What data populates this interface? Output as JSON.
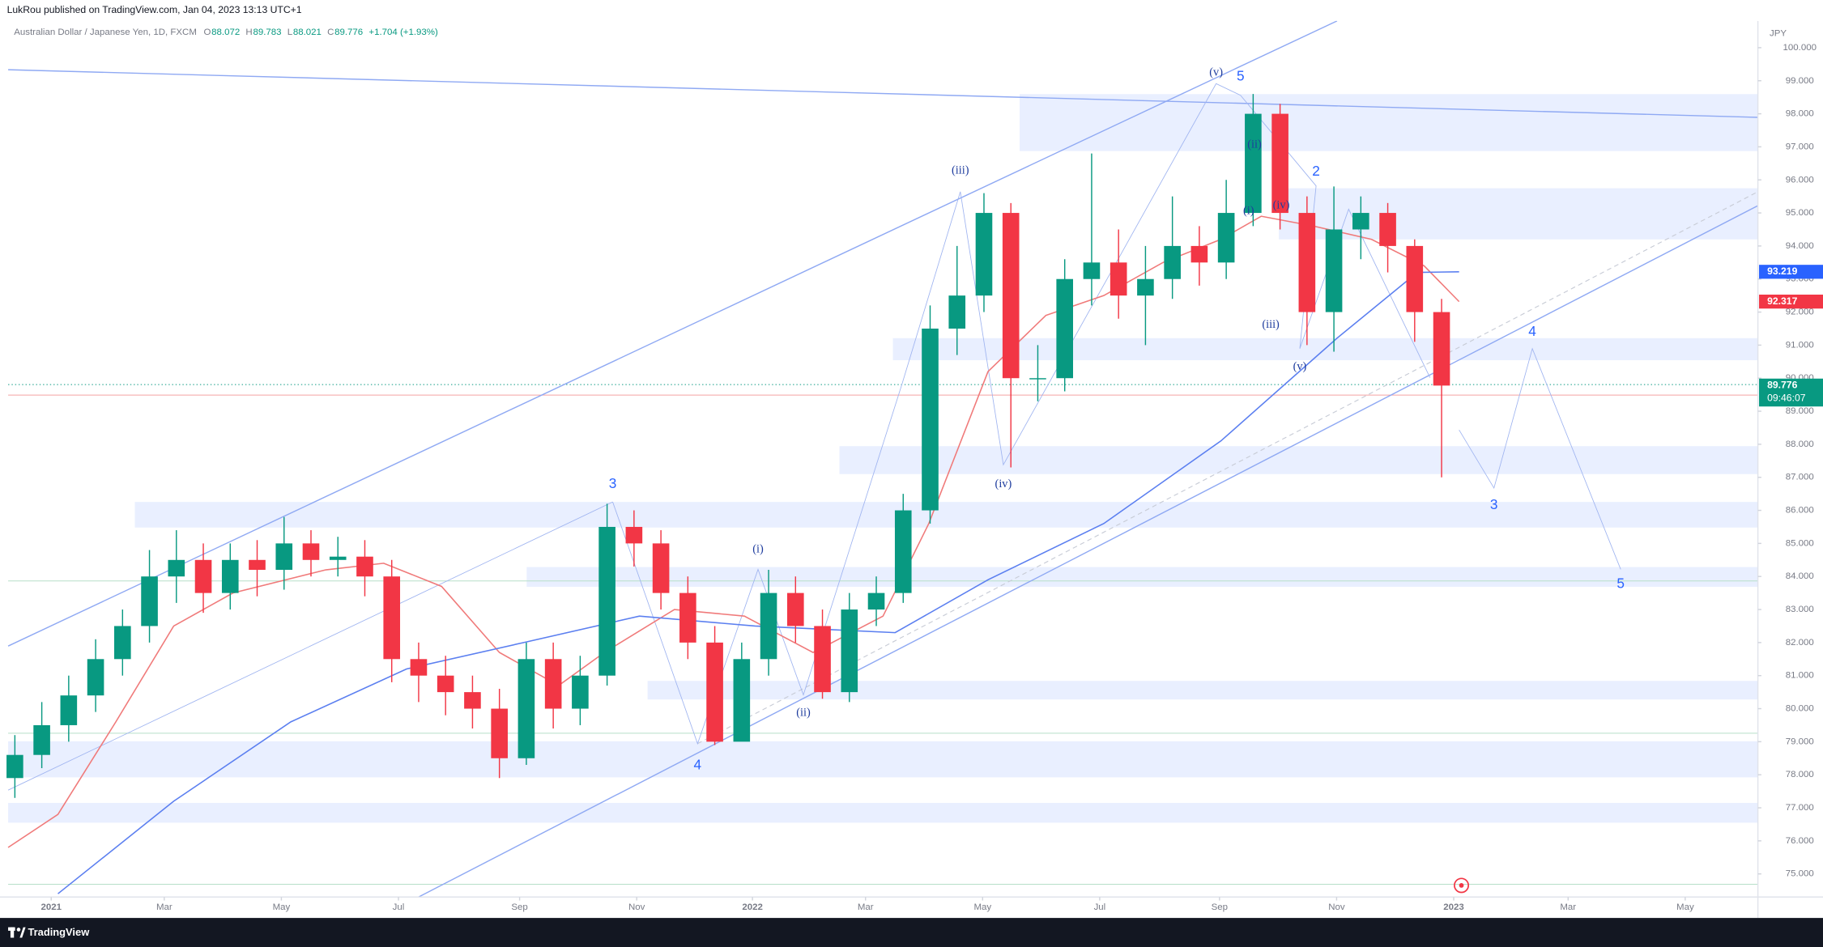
{
  "chart_data": {
    "type": "candlestick",
    "publisher": "LukRou published on TradingView.com, Jan 04, 2023 13:13 UTC+1",
    "title": "Australian Dollar / Japanese Yen, 1D, FXCM",
    "ohlc_legend": [
      {
        "key": "O",
        "value": "88.072"
      },
      {
        "key": "H",
        "value": "89.783"
      },
      {
        "key": "L",
        "value": "88.021"
      },
      {
        "key": "C",
        "value": "89.776"
      }
    ],
    "change": "+1.704 (+1.93%)",
    "y_unit": "JPY",
    "up_color": "#089981",
    "down_color": "#f23645",
    "x": [
      0.5,
      2.5,
      4.5,
      6.5,
      8.5,
      10.5,
      12.5,
      14.5,
      16.5,
      18.5,
      20.5,
      22.5,
      24.5,
      26.5,
      28.5,
      30.5,
      32.5,
      34.5,
      36.5,
      38.5,
      40.5,
      42.5,
      44.5,
      46.5,
      48.5,
      50.5,
      52.5,
      54.5,
      56.5,
      58.5,
      60.5,
      62.5,
      64.5,
      66.5,
      68.5,
      70.5,
      72.5,
      74.5,
      76.5,
      78.5,
      80.5,
      82.5,
      84.5,
      86.5,
      88.5,
      90.5,
      92.5,
      94.5,
      96.5,
      98.5,
      100.5,
      102.5,
      104.5,
      106.5
    ],
    "open": [
      77.9,
      78.6,
      79.5,
      80.4,
      81.5,
      82.5,
      84.0,
      84.5,
      83.5,
      84.5,
      84.2,
      85.0,
      84.5,
      84.6,
      84.0,
      81.5,
      81.0,
      80.5,
      80.0,
      78.5,
      81.5,
      80.0,
      81.0,
      85.5,
      85.0,
      83.5,
      82.0,
      79.0,
      81.5,
      83.5,
      82.5,
      80.5,
      83.0,
      83.5,
      86.0,
      91.5,
      92.5,
      95.0,
      90.0,
      90.0,
      93.0,
      93.5,
      92.5,
      93.0,
      94.0,
      93.5,
      95.0,
      98.0,
      95.0,
      92.0,
      94.5,
      95.0,
      94.0,
      92.0
    ],
    "high": [
      79.2,
      80.2,
      81.0,
      82.1,
      83.0,
      84.8,
      85.4,
      85.0,
      85.0,
      85.1,
      85.8,
      85.4,
      85.2,
      85.1,
      84.5,
      82.0,
      81.6,
      81.0,
      80.6,
      82.0,
      82.0,
      81.6,
      86.2,
      86.0,
      85.4,
      84.0,
      82.5,
      82.0,
      84.2,
      84.0,
      83.0,
      83.5,
      84.0,
      86.5,
      92.2,
      94.0,
      95.6,
      95.3,
      91.0,
      93.6,
      96.8,
      94.5,
      94.0,
      95.5,
      94.6,
      96.0,
      98.6,
      98.3,
      95.5,
      95.8,
      95.5,
      95.3,
      94.2,
      92.4
    ],
    "low": [
      77.3,
      78.2,
      79.0,
      79.9,
      81.0,
      82.0,
      83.2,
      82.9,
      83.0,
      83.4,
      83.6,
      84.0,
      84.0,
      83.4,
      80.8,
      80.2,
      79.8,
      79.4,
      77.9,
      78.3,
      79.4,
      79.5,
      80.7,
      84.3,
      83.0,
      81.5,
      78.9,
      79.2,
      81.0,
      82.0,
      80.3,
      80.2,
      82.5,
      83.2,
      85.6,
      90.7,
      92.0,
      87.3,
      89.3,
      89.6,
      92.2,
      91.8,
      91.0,
      92.4,
      92.8,
      93.0,
      94.6,
      94.5,
      91.0,
      90.8,
      93.6,
      93.2,
      91.1,
      87.0
    ],
    "close": [
      78.6,
      79.5,
      80.4,
      81.5,
      82.5,
      84.0,
      84.5,
      83.5,
      84.5,
      84.2,
      85.0,
      84.5,
      84.6,
      84.0,
      81.5,
      81.0,
      80.5,
      80.0,
      78.5,
      81.5,
      80.0,
      81.0,
      85.5,
      85.0,
      83.5,
      82.0,
      79.0,
      81.5,
      83.5,
      82.5,
      80.5,
      83.0,
      83.5,
      86.0,
      91.5,
      92.5,
      95.0,
      90.0,
      90.0,
      93.0,
      93.5,
      92.5,
      93.0,
      94.0,
      93.5,
      95.0,
      98.0,
      95.0,
      92.0,
      94.5,
      95.0,
      94.0,
      92.0,
      89.776
    ],
    "overlays": [
      {
        "color": "#f07a7a",
        "x": [
          0,
          3.7,
          8.0,
          12.3,
          16.7,
          23.6,
          27.9,
          32.2,
          36.5,
          40.9,
          44.3,
          49.5,
          54.7,
          59.8,
          65.0,
          68.4,
          72.8,
          77.1,
          81.4,
          85.8,
          90.1,
          93.1,
          97.0,
          101.3,
          105.2,
          107.8
        ],
        "values": [
          75.8,
          76.8,
          79.6,
          82.5,
          83.5,
          84.2,
          84.4,
          83.7,
          81.7,
          80.7,
          81.7,
          83.0,
          82.8,
          81.7,
          82.8,
          85.6,
          90.2,
          91.9,
          92.5,
          93.5,
          94.2,
          94.9,
          94.6,
          94.2,
          93.4,
          92.317
        ]
      },
      {
        "color": "#5b7ff0",
        "x": [
          3.7,
          12.3,
          21.0,
          29.6,
          38.3,
          46.9,
          55.5,
          65.9,
          72.8,
          81.4,
          90.1,
          98.7,
          104.7,
          107.8
        ],
        "values": [
          74.4,
          77.2,
          79.6,
          81.2,
          82.0,
          82.8,
          82.5,
          82.3,
          83.9,
          85.6,
          88.1,
          91.2,
          93.2,
          93.219
        ]
      }
    ],
    "price_markers": [
      {
        "value": 93.219,
        "color": "#2962ff"
      },
      {
        "value": 92.317,
        "color": "#f23645"
      },
      {
        "value": 89.776,
        "color": "#089981"
      }
    ],
    "countdown": "09:46:07",
    "xlim": [
      0,
      130
    ],
    "xticks": [
      {
        "value": 3.2,
        "label": "2021"
      },
      {
        "value": 11.6,
        "label": "Mar"
      },
      {
        "value": 20.3,
        "label": "May"
      },
      {
        "value": 29.0,
        "label": "Jul"
      },
      {
        "value": 38.0,
        "label": "Sep"
      },
      {
        "value": 46.7,
        "label": "Nov"
      },
      {
        "value": 55.3,
        "label": "2022"
      },
      {
        "value": 63.7,
        "label": "Mar"
      },
      {
        "value": 72.4,
        "label": "May"
      },
      {
        "value": 81.1,
        "label": "Jul"
      },
      {
        "value": 90.0,
        "label": "Sep"
      },
      {
        "value": 98.7,
        "label": "Nov"
      },
      {
        "value": 107.4,
        "label": "2023"
      },
      {
        "value": 115.9,
        "label": "Mar"
      },
      {
        "value": 124.6,
        "label": "May"
      }
    ],
    "ylim": [
      74.3,
      100.81
    ],
    "yticks": [
      {
        "value": 75,
        "label": "75.000"
      },
      {
        "value": 76,
        "label": "76.000"
      },
      {
        "value": 77,
        "label": "77.000"
      },
      {
        "value": 78,
        "label": "78.000"
      },
      {
        "value": 79,
        "label": "79.000"
      },
      {
        "value": 80,
        "label": "80.000"
      },
      {
        "value": 81,
        "label": "81.000"
      },
      {
        "value": 82,
        "label": "82.000"
      },
      {
        "value": 83,
        "label": "83.000"
      },
      {
        "value": 84,
        "label": "84.000"
      },
      {
        "value": 85,
        "label": "85.000"
      },
      {
        "value": 86,
        "label": "86.000"
      },
      {
        "value": 87,
        "label": "87.000"
      },
      {
        "value": 88,
        "label": "88.000"
      },
      {
        "value": 89,
        "label": "89.000"
      },
      {
        "value": 90,
        "label": "90.000"
      },
      {
        "value": 91,
        "label": "91.000"
      },
      {
        "value": 92,
        "label": "92.000"
      },
      {
        "value": 93,
        "label": "93.000"
      },
      {
        "value": 94,
        "label": "94.000"
      },
      {
        "value": 95,
        "label": "95.000"
      },
      {
        "value": 96,
        "label": "96.000"
      },
      {
        "value": 97,
        "label": "97.000"
      },
      {
        "value": 98,
        "label": "98.000"
      },
      {
        "value": 99,
        "label": "99.000"
      },
      {
        "value": 100,
        "label": "100.000"
      }
    ],
    "annotations": [
      {
        "text": "(v)"
      },
      {
        "text": "5"
      },
      {
        "text": "(ii)"
      },
      {
        "text": "2"
      },
      {
        "text": "(iii)"
      },
      {
        "text": "(i)"
      },
      {
        "text": "(iv)"
      },
      {
        "text": "(iii)"
      },
      {
        "text": "(v)"
      },
      {
        "text": "(iv)"
      },
      {
        "text": "3"
      },
      {
        "text": "(i)"
      },
      {
        "text": "(ii)"
      },
      {
        "text": "4"
      },
      {
        "text": "4"
      },
      {
        "text": "3"
      },
      {
        "text": "5"
      }
    ],
    "brand": "TradingView"
  }
}
